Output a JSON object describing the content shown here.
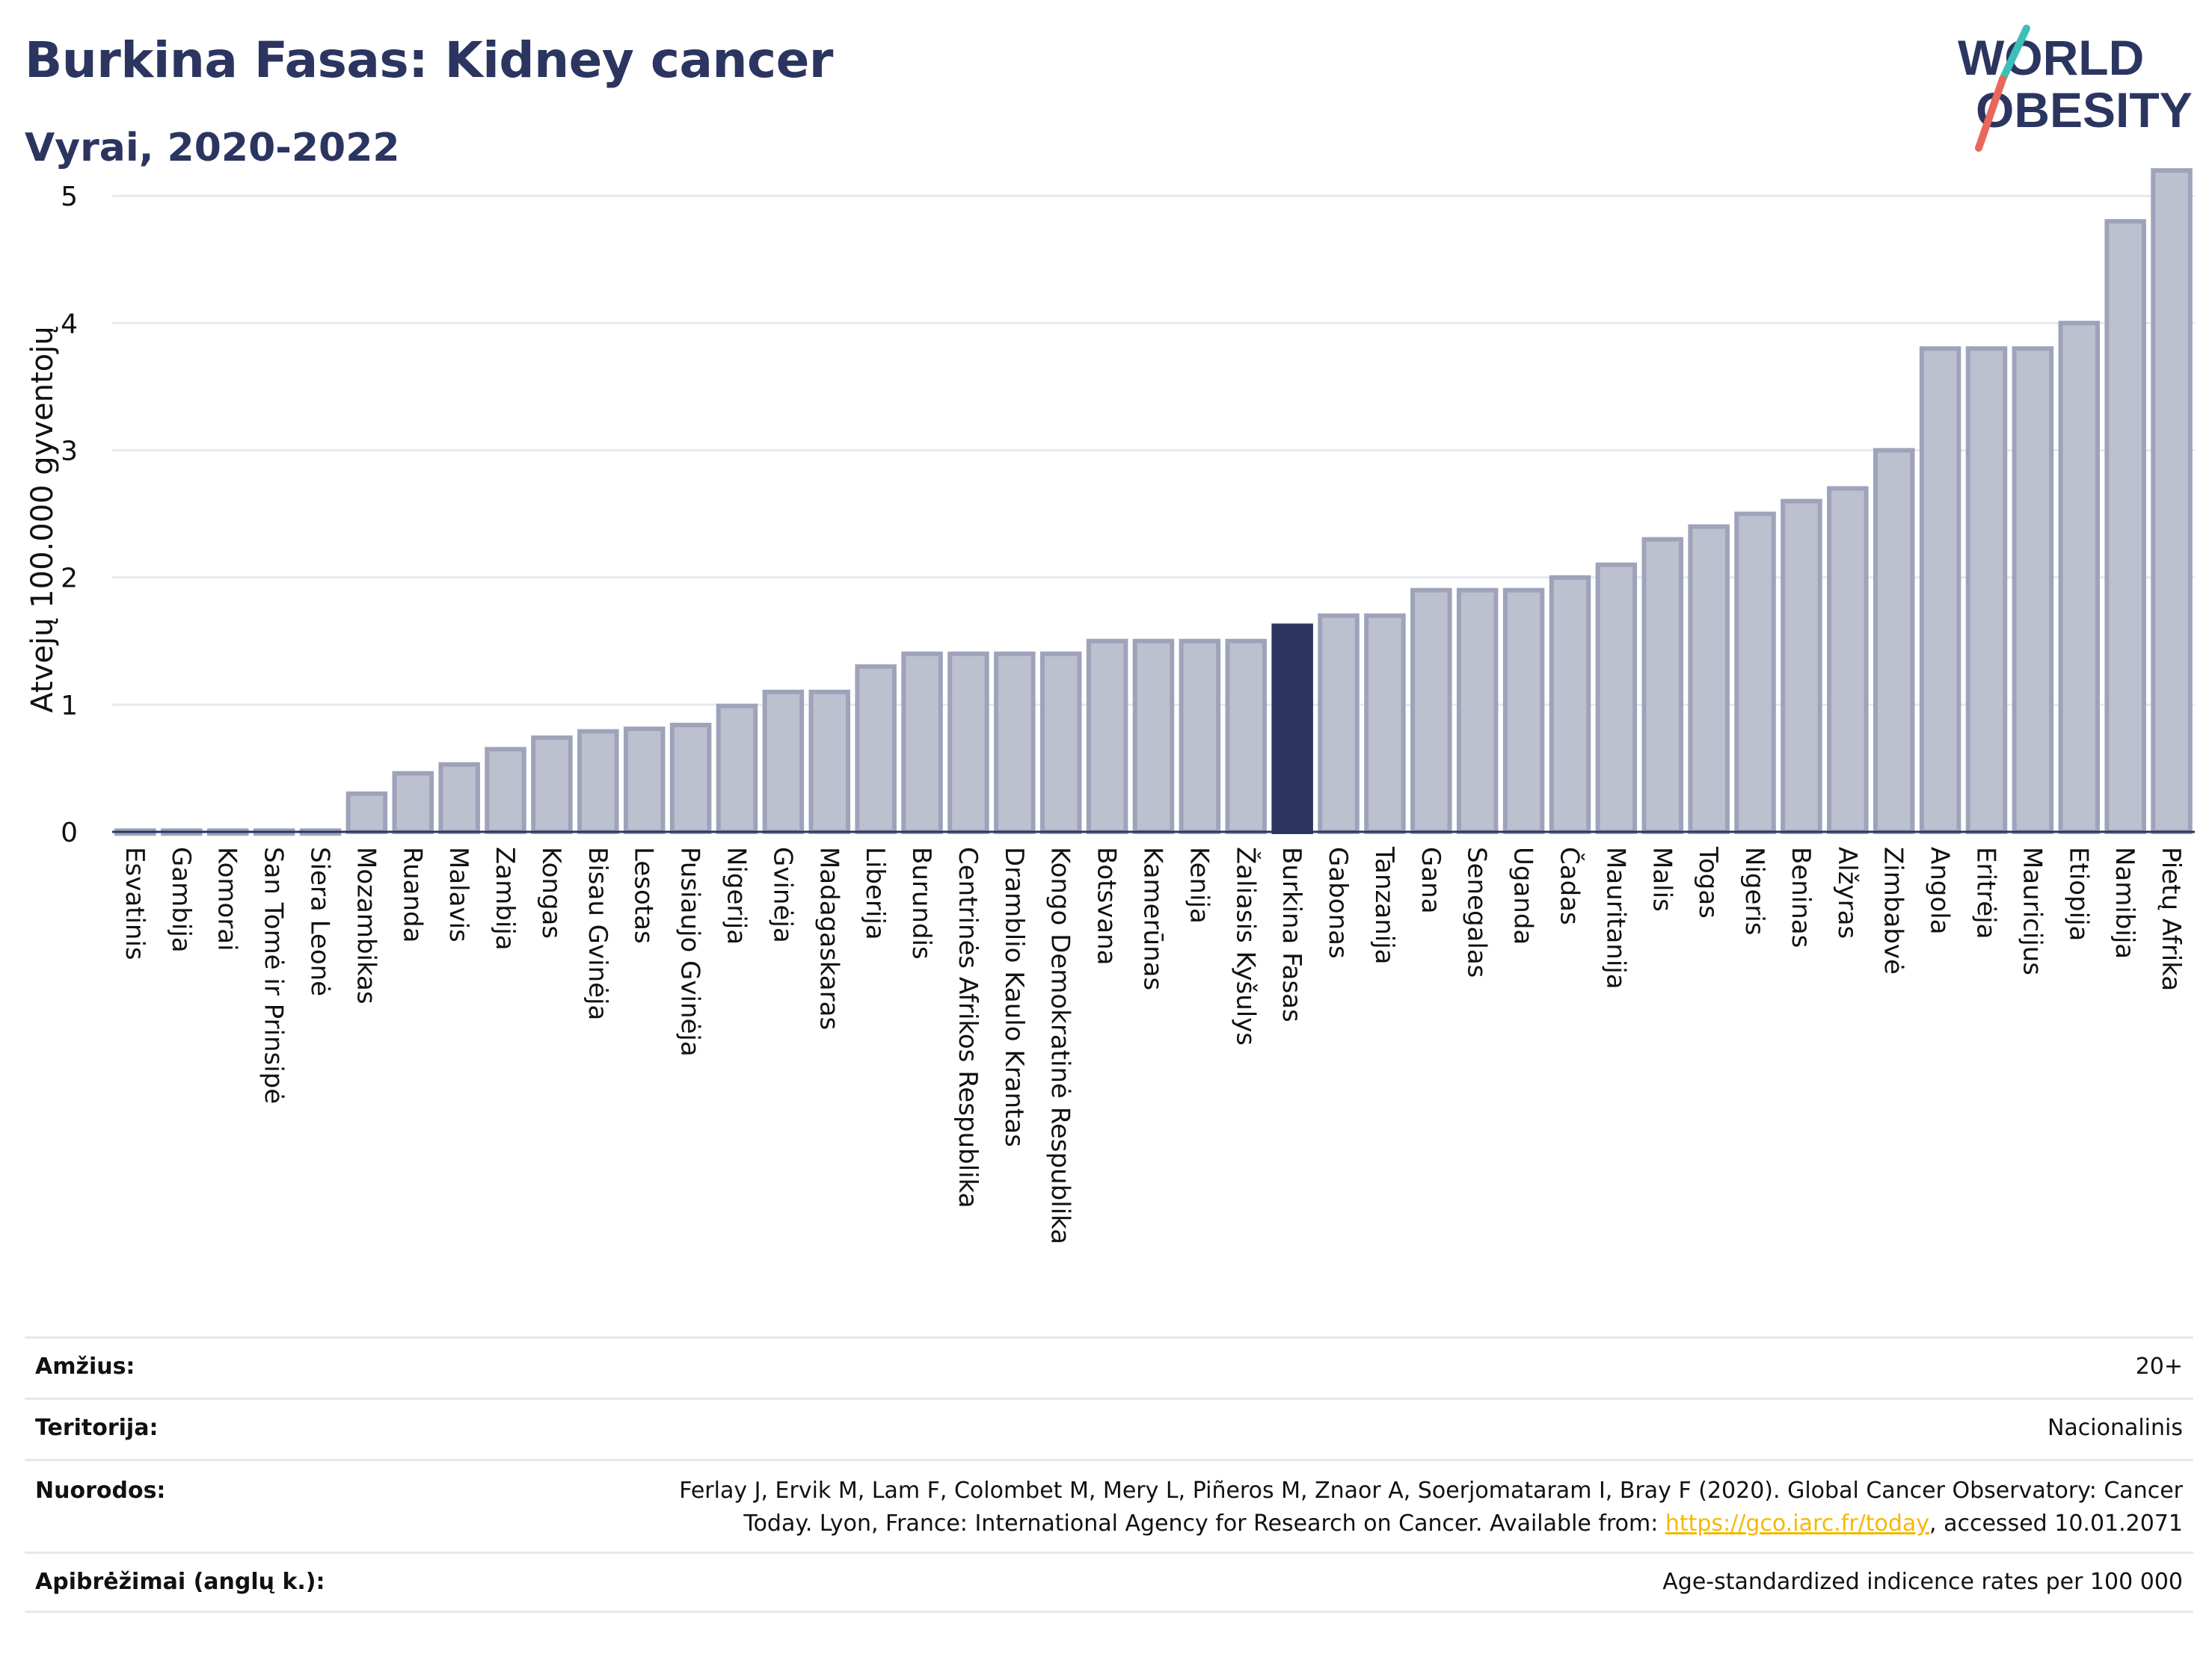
{
  "header": {
    "title": "Burkina Fasas: Kidney cancer",
    "subtitle": "Vyrai, 2020-2022"
  },
  "logo": {
    "line1": "WORLD",
    "line2": "OBESITY",
    "accent_teal": "#3dbfb8",
    "accent_red": "#e8685a"
  },
  "colors": {
    "bar": "#bcc0cf",
    "bar_edge": "#9ea3ba",
    "highlight": "#2b3560",
    "grid": "#e8e9ee",
    "axis": "#2b3560"
  },
  "chart_data": {
    "type": "bar",
    "title": "Burkina Fasas: Kidney cancer",
    "subtitle": "Vyrai, 2020-2022",
    "xlabel": "",
    "ylabel": "Atvejų 100.000 gyventojų",
    "ylim": [
      0,
      5.4
    ],
    "yticks": [
      0,
      1,
      2,
      3,
      4,
      5
    ],
    "grid": true,
    "highlight": "Burkina Fasas",
    "categories": [
      "Esvatinis",
      "Gambija",
      "Komorai",
      "San Tomė ir Prinsipė",
      "Siera Leonė",
      "Mozambikas",
      "Ruanda",
      "Malavis",
      "Zambija",
      "Kongas",
      "Bisau Gvinėja",
      "Lesotas",
      "Pusiaujo Gvinėja",
      "Nigerija",
      "Gvinėja",
      "Madagaskaras",
      "Liberija",
      "Burundis",
      "Centrinės Afrikos Respublika",
      "Dramblio Kaulo Krantas",
      "Kongo Demokratinė Respublika",
      "Botsvana",
      "Kamerūnas",
      "Kenija",
      "Žaliasis Kyšulys",
      "Burkina Fasas",
      "Gabonas",
      "Tanzanija",
      "Gana",
      "Senegalas",
      "Uganda",
      "Čadas",
      "Mauritanija",
      "Malis",
      "Togas",
      "Nigeris",
      "Beninas",
      "Alžyras",
      "Zimbabvė",
      "Angola",
      "Eritrėja",
      "Mauricijus",
      "Etiopija",
      "Namibija",
      "Pietų Afrika"
    ],
    "values": [
      0.01,
      0.01,
      0.01,
      0.01,
      0.01,
      0.3,
      0.46,
      0.53,
      0.65,
      0.74,
      0.79,
      0.81,
      0.84,
      0.99,
      1.1,
      1.1,
      1.3,
      1.4,
      1.4,
      1.4,
      1.4,
      1.5,
      1.5,
      1.5,
      1.5,
      1.62,
      1.7,
      1.7,
      1.9,
      1.9,
      1.9,
      2.0,
      2.1,
      2.3,
      2.4,
      2.5,
      2.6,
      2.7,
      3.0,
      3.8,
      3.8,
      3.8,
      4.0,
      4.8,
      5.2
    ]
  },
  "meta": [
    {
      "label": "Amžius:",
      "value": "20+"
    },
    {
      "label": "Teritorija:",
      "value": "Nacionalinis"
    },
    {
      "label": "Nuorodos:",
      "value_line1": "Ferlay J, Ervik M, Lam F, Colombet M, Mery L, Piñeros M, Znaor A, Soerjomataram I, Bray F (2020). Global Cancer Observatory: Cancer",
      "value_line2_pre": "Today. Lyon, France: International Agency for Research on Cancer. Available from: ",
      "link": "https://gco.iarc.fr/today",
      "value_line2_post": ", accessed 10.01.2071"
    },
    {
      "label": "Apibrėžimai (anglų k.):",
      "value": "Age-standardized indicence rates per 100 000"
    }
  ]
}
